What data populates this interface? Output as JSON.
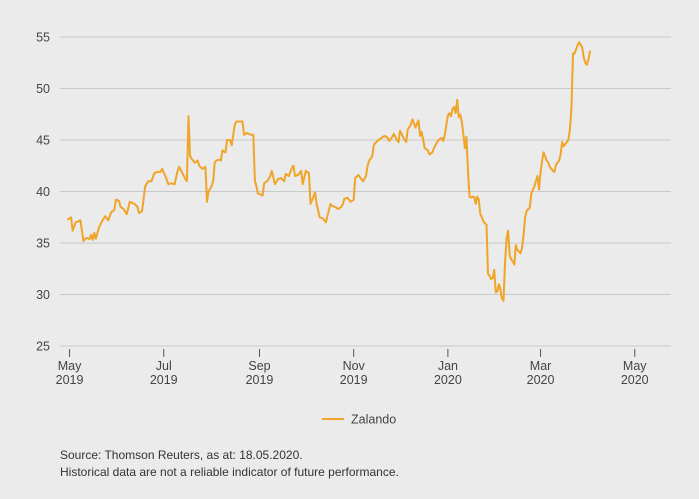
{
  "chart_data": {
    "type": "line",
    "title": "",
    "xlabel": "",
    "ylabel": "",
    "ylim": [
      25,
      55
    ],
    "yticks": [
      25,
      30,
      35,
      40,
      45,
      50,
      55
    ],
    "x_tick_labels": [
      {
        "month": "May",
        "year": "2019",
        "day": 1
      },
      {
        "month": "Jul",
        "year": "2019",
        "day": 62
      },
      {
        "month": "Sep",
        "year": "2019",
        "day": 124
      },
      {
        "month": "Nov",
        "year": "2019",
        "day": 185
      },
      {
        "month": "Jan",
        "year": "2020",
        "day": 246
      },
      {
        "month": "Mar",
        "year": "2020",
        "day": 306
      },
      {
        "month": "May",
        "year": "2020",
        "day": 367
      }
    ],
    "xlim": [
      0,
      384
    ],
    "series": [
      {
        "name": "Zalando",
        "color": "#f0a428",
        "points": [
          [
            0,
            37.3
          ],
          [
            2,
            37.5
          ],
          [
            3,
            36.2
          ],
          [
            5,
            37.0
          ],
          [
            8,
            37.2
          ],
          [
            10,
            35.2
          ],
          [
            12,
            35.5
          ],
          [
            14,
            35.4
          ],
          [
            15,
            35.8
          ],
          [
            16,
            35.3
          ],
          [
            17,
            36.0
          ],
          [
            18,
            35.4
          ],
          [
            20,
            36.5
          ],
          [
            22,
            37.1
          ],
          [
            24,
            37.6
          ],
          [
            26,
            37.2
          ],
          [
            28,
            38.0
          ],
          [
            30,
            38.2
          ],
          [
            31,
            39.2
          ],
          [
            33,
            39.1
          ],
          [
            34,
            38.5
          ],
          [
            36,
            38.3
          ],
          [
            38,
            37.8
          ],
          [
            40,
            39.0
          ],
          [
            43,
            38.8
          ],
          [
            45,
            38.5
          ],
          [
            46,
            37.9
          ],
          [
            48,
            38.1
          ],
          [
            50,
            40.5
          ],
          [
            52,
            41.0
          ],
          [
            54,
            41.0
          ],
          [
            56,
            41.8
          ],
          [
            58,
            41.9
          ],
          [
            60,
            41.9
          ],
          [
            61,
            42.2
          ],
          [
            63,
            41.5
          ],
          [
            65,
            40.7
          ],
          [
            67,
            40.8
          ],
          [
            69,
            40.7
          ],
          [
            71,
            42.0
          ],
          [
            72,
            42.4
          ],
          [
            74,
            41.8
          ],
          [
            76,
            41.2
          ],
          [
            77,
            41.0
          ],
          [
            78,
            47.3
          ],
          [
            79,
            43.5
          ],
          [
            80,
            43.2
          ],
          [
            82,
            42.8
          ],
          [
            84,
            43.0
          ],
          [
            85,
            42.5
          ],
          [
            87,
            42.2
          ],
          [
            89,
            42.4
          ],
          [
            90,
            39.0
          ],
          [
            91,
            40.0
          ],
          [
            93,
            40.5
          ],
          [
            94,
            41.0
          ],
          [
            95,
            42.8
          ],
          [
            96,
            43.0
          ],
          [
            98,
            43.1
          ],
          [
            99,
            43.0
          ],
          [
            100,
            44.0
          ],
          [
            102,
            43.8
          ],
          [
            103,
            45.0
          ],
          [
            105,
            45.0
          ],
          [
            106,
            44.5
          ],
          [
            108,
            46.5
          ],
          [
            109,
            46.8
          ],
          [
            111,
            46.8
          ],
          [
            113,
            46.8
          ],
          [
            114,
            45.5
          ],
          [
            116,
            45.7
          ],
          [
            118,
            45.5
          ],
          [
            120,
            45.5
          ],
          [
            121,
            41.0
          ],
          [
            122,
            40.5
          ],
          [
            123,
            39.8
          ],
          [
            125,
            39.7
          ],
          [
            126,
            39.6
          ],
          [
            127,
            40.8
          ],
          [
            129,
            41.0
          ],
          [
            131,
            41.5
          ],
          [
            132,
            42.0
          ],
          [
            134,
            40.7
          ],
          [
            136,
            41.2
          ],
          [
            138,
            41.3
          ],
          [
            140,
            41.0
          ],
          [
            141,
            41.7
          ],
          [
            143,
            41.5
          ],
          [
            145,
            42.3
          ],
          [
            146,
            42.5
          ],
          [
            147,
            41.5
          ],
          [
            149,
            41.6
          ],
          [
            151,
            42.0
          ],
          [
            152,
            40.7
          ],
          [
            154,
            42.0
          ],
          [
            156,
            41.8
          ],
          [
            157,
            38.8
          ],
          [
            159,
            39.5
          ],
          [
            160,
            39.9
          ],
          [
            161,
            38.8
          ],
          [
            163,
            37.5
          ],
          [
            165,
            37.4
          ],
          [
            167,
            37.0
          ],
          [
            168,
            37.6
          ],
          [
            170,
            38.8
          ],
          [
            171,
            38.6
          ],
          [
            173,
            38.5
          ],
          [
            175,
            38.3
          ],
          [
            177,
            38.5
          ],
          [
            178,
            38.8
          ],
          [
            179,
            39.3
          ],
          [
            181,
            39.4
          ],
          [
            183,
            39.0
          ],
          [
            185,
            39.2
          ],
          [
            186,
            41.3
          ],
          [
            188,
            41.6
          ],
          [
            190,
            41.2
          ],
          [
            191,
            41.0
          ],
          [
            193,
            41.5
          ],
          [
            194,
            42.5
          ],
          [
            195,
            43.0
          ],
          [
            197,
            43.4
          ],
          [
            198,
            44.5
          ],
          [
            199,
            44.7
          ],
          [
            201,
            45.0
          ],
          [
            203,
            45.2
          ],
          [
            205,
            45.4
          ],
          [
            207,
            45.2
          ],
          [
            208,
            44.9
          ],
          [
            210,
            45.3
          ],
          [
            211,
            45.6
          ],
          [
            213,
            45.0
          ],
          [
            214,
            44.8
          ],
          [
            215,
            45.9
          ],
          [
            217,
            45.3
          ],
          [
            218,
            45.0
          ],
          [
            219,
            44.8
          ],
          [
            220,
            46.0
          ],
          [
            222,
            46.5
          ],
          [
            223,
            47.0
          ],
          [
            225,
            46.2
          ],
          [
            226,
            46.6
          ],
          [
            227,
            46.9
          ],
          [
            228,
            45.4
          ],
          [
            229,
            45.8
          ],
          [
            230,
            45.0
          ],
          [
            231,
            44.2
          ],
          [
            233,
            44.0
          ],
          [
            234,
            43.6
          ],
          [
            236,
            43.8
          ],
          [
            237,
            44.2
          ],
          [
            239,
            44.8
          ],
          [
            240,
            45.0
          ],
          [
            242,
            45.2
          ],
          [
            243,
            44.9
          ],
          [
            244,
            45.5
          ],
          [
            246,
            47.4
          ],
          [
            247,
            47.6
          ],
          [
            248,
            47.3
          ],
          [
            249,
            48.0
          ],
          [
            250,
            48.2
          ],
          [
            251,
            47.6
          ],
          [
            252,
            48.9
          ],
          [
            253,
            47.2
          ],
          [
            254,
            47.5
          ],
          [
            255,
            46.8
          ],
          [
            256,
            45.6
          ],
          [
            257,
            44.2
          ],
          [
            258,
            45.3
          ],
          [
            259,
            42.0
          ],
          [
            260,
            39.5
          ],
          [
            261,
            39.4
          ],
          [
            262,
            39.5
          ],
          [
            263,
            39.5
          ],
          [
            264,
            38.8
          ],
          [
            265,
            39.5
          ],
          [
            266,
            39.2
          ],
          [
            267,
            37.8
          ],
          [
            268,
            37.5
          ],
          [
            269,
            37.1
          ],
          [
            270,
            36.9
          ],
          [
            271,
            36.8
          ],
          [
            272,
            32.0
          ],
          [
            273,
            31.8
          ],
          [
            274,
            31.5
          ],
          [
            275,
            31.6
          ],
          [
            276,
            32.4
          ],
          [
            277,
            30.2
          ],
          [
            278,
            30.3
          ],
          [
            279,
            31.0
          ],
          [
            280,
            30.5
          ],
          [
            281,
            29.6
          ],
          [
            282,
            29.4
          ],
          [
            283,
            33.0
          ],
          [
            284,
            35.5
          ],
          [
            285,
            36.2
          ],
          [
            286,
            33.8
          ],
          [
            287,
            33.4
          ],
          [
            288,
            33.2
          ],
          [
            289,
            32.9
          ],
          [
            290,
            34.8
          ],
          [
            291,
            34.3
          ],
          [
            292,
            34.2
          ],
          [
            293,
            34.0
          ],
          [
            294,
            34.5
          ],
          [
            295,
            35.8
          ],
          [
            296,
            37.5
          ],
          [
            297,
            38.1
          ],
          [
            298,
            38.3
          ],
          [
            299,
            38.4
          ],
          [
            300,
            39.8
          ],
          [
            302,
            40.5
          ],
          [
            303,
            41.0
          ],
          [
            304,
            41.5
          ],
          [
            305,
            40.2
          ],
          [
            306,
            41.8
          ],
          [
            307,
            43.0
          ],
          [
            308,
            43.8
          ],
          [
            310,
            43.0
          ],
          [
            311,
            42.8
          ],
          [
            312,
            42.4
          ],
          [
            313,
            42.2
          ],
          [
            314,
            42.0
          ],
          [
            315,
            41.9
          ],
          [
            316,
            42.6
          ],
          [
            317,
            42.8
          ],
          [
            318,
            43.0
          ],
          [
            319,
            43.6
          ],
          [
            320,
            44.8
          ],
          [
            321,
            44.4
          ],
          [
            322,
            44.6
          ],
          [
            323,
            44.8
          ],
          [
            324,
            45.0
          ],
          [
            325,
            46.0
          ],
          [
            326,
            48.0
          ],
          [
            327,
            53.4
          ],
          [
            328,
            53.4
          ],
          [
            329,
            53.8
          ],
          [
            330,
            54.2
          ],
          [
            331,
            54.5
          ],
          [
            332,
            54.2
          ],
          [
            333,
            54.0
          ],
          [
            334,
            53.0
          ],
          [
            335,
            52.5
          ],
          [
            336,
            52.3
          ],
          [
            337,
            52.8
          ],
          [
            338,
            53.6
          ]
        ]
      }
    ],
    "legend": {
      "position": "bottom-center"
    }
  },
  "footer": {
    "source": "Source: Thomson Reuters, as at: 18.05.2020.",
    "disclaimer": "Historical data are not a reliable indicator of future performance."
  }
}
